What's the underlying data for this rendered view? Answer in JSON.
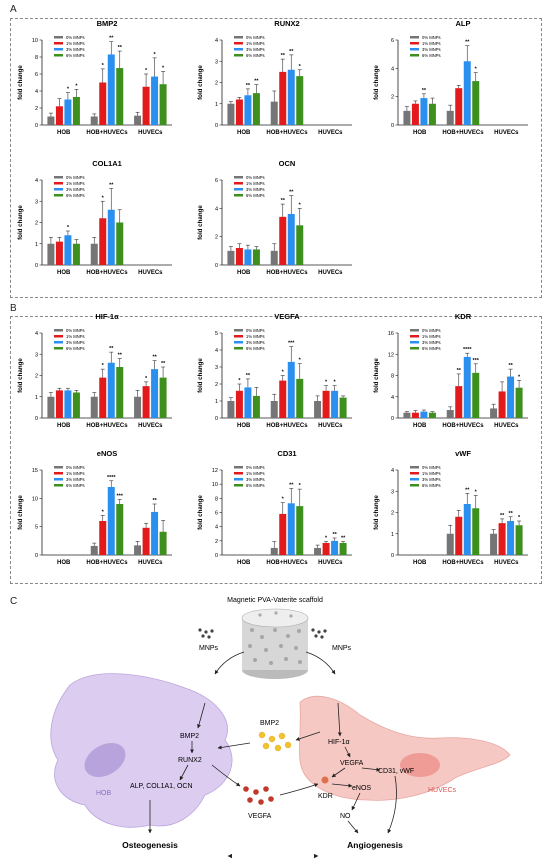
{
  "panels": {
    "a": "A",
    "b": "B",
    "c": "C"
  },
  "axis": {
    "ylabel": "fold change"
  },
  "legend": [
    {
      "label": "0% MNPs",
      "color": "#757575"
    },
    {
      "label": "1% MNPs",
      "color": "#e31a1c"
    },
    {
      "label": "3% MNPs",
      "color": "#2b8ff0"
    },
    {
      "label": "6% MNPs",
      "color": "#3d8f1e"
    }
  ],
  "chart_data": [
    {
      "type": "bar",
      "title": "BMP2",
      "categories": [
        "HOB",
        "HOB+HUVECs",
        "HUVECs"
      ],
      "ylim": [
        0,
        10
      ],
      "yticks": [
        0,
        2,
        4,
        6,
        8,
        10
      ],
      "series": [
        {
          "name": "0% MNPs",
          "values": [
            1.0,
            1.0,
            1.1
          ]
        },
        {
          "name": "1% MNPs",
          "values": [
            2.2,
            5.0,
            4.5
          ]
        },
        {
          "name": "3% MNPs",
          "values": [
            3.0,
            8.3,
            5.7
          ]
        },
        {
          "name": "6% MNPs",
          "values": [
            3.3,
            6.7,
            4.8
          ]
        }
      ],
      "errors": [
        [
          0.4,
          0.3,
          0.4
        ],
        [
          0.9,
          1.6,
          1.5
        ],
        [
          0.8,
          1.5,
          2.2
        ],
        [
          0.9,
          2.0,
          1.5
        ]
      ],
      "stars": [
        [
          "",
          "",
          ""
        ],
        [
          "",
          "*",
          "*"
        ],
        [
          "*",
          "**",
          "*"
        ],
        [
          "*",
          "**",
          "*"
        ]
      ]
    },
    {
      "type": "bar",
      "title": "RUNX2",
      "categories": [
        "HOB",
        "HOB+HUVECs",
        "HUVECs"
      ],
      "ylim": [
        0,
        4
      ],
      "yticks": [
        0,
        1,
        2,
        3,
        4
      ],
      "series": [
        {
          "name": "0% MNPs",
          "values": [
            1.0,
            1.1,
            0
          ]
        },
        {
          "name": "1% MNPs",
          "values": [
            1.2,
            2.5,
            0
          ]
        },
        {
          "name": "3% MNPs",
          "values": [
            1.4,
            2.6,
            0
          ]
        },
        {
          "name": "6% MNPs",
          "values": [
            1.5,
            2.3,
            0
          ]
        }
      ],
      "errors": [
        [
          0.1,
          0.5,
          0
        ],
        [
          0.1,
          0.6,
          0
        ],
        [
          0.3,
          0.7,
          0
        ],
        [
          0.4,
          0.3,
          0
        ]
      ],
      "stars": [
        [
          "",
          "",
          ""
        ],
        [
          "",
          "**",
          ""
        ],
        [
          "**",
          "**",
          ""
        ],
        [
          "**",
          "*",
          ""
        ]
      ]
    },
    {
      "type": "bar",
      "title": "ALP",
      "categories": [
        "HOB",
        "HOB+HUVECs",
        "HUVECs"
      ],
      "ylim": [
        0,
        6
      ],
      "yticks": [
        0,
        2,
        4,
        6
      ],
      "series": [
        {
          "name": "0% MNPs",
          "values": [
            1.0,
            1.0,
            0
          ]
        },
        {
          "name": "1% MNPs",
          "values": [
            1.5,
            2.6,
            0
          ]
        },
        {
          "name": "3% MNPs",
          "values": [
            1.9,
            4.5,
            0
          ]
        },
        {
          "name": "6% MNPs",
          "values": [
            1.5,
            3.1,
            0
          ]
        }
      ],
      "errors": [
        [
          0.3,
          0.4,
          0
        ],
        [
          0.2,
          0.2,
          0
        ],
        [
          0.3,
          1.1,
          0
        ],
        [
          0.4,
          0.6,
          0
        ]
      ],
      "stars": [
        [
          "",
          "",
          ""
        ],
        [
          "",
          "",
          ""
        ],
        [
          "**",
          "**",
          ""
        ],
        [
          "",
          "*",
          ""
        ]
      ]
    },
    {
      "type": "bar",
      "title": "COL1A1",
      "categories": [
        "HOB",
        "HOB+HUVECs",
        "HUVECs"
      ],
      "ylim": [
        0,
        4
      ],
      "yticks": [
        0,
        1,
        2,
        3,
        4
      ],
      "series": [
        {
          "name": "0% MNPs",
          "values": [
            1.0,
            1.0,
            0
          ]
        },
        {
          "name": "1% MNPs",
          "values": [
            1.1,
            2.2,
            0
          ]
        },
        {
          "name": "3% MNPs",
          "values": [
            1.4,
            2.6,
            0
          ]
        },
        {
          "name": "6% MNPs",
          "values": [
            1.0,
            2.0,
            0
          ]
        }
      ],
      "errors": [
        [
          0.3,
          0.3,
          0
        ],
        [
          0.2,
          0.8,
          0
        ],
        [
          0.2,
          1.0,
          0
        ],
        [
          0.2,
          0.6,
          0
        ]
      ],
      "stars": [
        [
          "",
          "",
          ""
        ],
        [
          "",
          "*",
          ""
        ],
        [
          "*",
          "**",
          ""
        ],
        [
          "",
          "",
          ""
        ]
      ]
    },
    {
      "type": "bar",
      "title": "OCN",
      "categories": [
        "HOB",
        "HOB+HUVECs",
        "HUVECs"
      ],
      "ylim": [
        0,
        6
      ],
      "yticks": [
        0,
        2,
        4,
        6
      ],
      "series": [
        {
          "name": "0% MNPs",
          "values": [
            1.0,
            1.0,
            0
          ]
        },
        {
          "name": "1% MNPs",
          "values": [
            1.2,
            3.4,
            0
          ]
        },
        {
          "name": "3% MNPs",
          "values": [
            1.1,
            3.6,
            0
          ]
        },
        {
          "name": "6% MNPs",
          "values": [
            1.1,
            2.8,
            0
          ]
        }
      ],
      "errors": [
        [
          0.3,
          0.5,
          0
        ],
        [
          0.3,
          0.9,
          0
        ],
        [
          0.3,
          1.3,
          0
        ],
        [
          0.2,
          1.2,
          0
        ]
      ],
      "stars": [
        [
          "",
          "",
          ""
        ],
        [
          "",
          "**",
          ""
        ],
        [
          "",
          "**",
          ""
        ],
        [
          "",
          "*",
          ""
        ]
      ]
    },
    {
      "type": "bar",
      "title": "HIF-1α",
      "categories": [
        "HOB",
        "HOB+HUVECs",
        "HUVECs"
      ],
      "ylim": [
        0,
        4
      ],
      "yticks": [
        0,
        1,
        2,
        3,
        4
      ],
      "series": [
        {
          "name": "0% MNPs",
          "values": [
            1.0,
            1.0,
            1.0
          ]
        },
        {
          "name": "1% MNPs",
          "values": [
            1.3,
            1.9,
            1.5
          ]
        },
        {
          "name": "3% MNPs",
          "values": [
            1.3,
            2.6,
            2.3
          ]
        },
        {
          "name": "6% MNPs",
          "values": [
            1.2,
            2.4,
            1.9
          ]
        }
      ],
      "errors": [
        [
          0.2,
          0.2,
          0.3
        ],
        [
          0.1,
          0.4,
          0.2
        ],
        [
          0.1,
          0.5,
          0.4
        ],
        [
          0.1,
          0.4,
          0.5
        ]
      ],
      "stars": [
        [
          "",
          "",
          ""
        ],
        [
          "",
          "*",
          "*"
        ],
        [
          "",
          "**",
          "**"
        ],
        [
          "",
          "**",
          "**"
        ]
      ]
    },
    {
      "type": "bar",
      "title": "VEGFA",
      "categories": [
        "HOB",
        "HOB+HUVECs",
        "HUVECs"
      ],
      "ylim": [
        0,
        5
      ],
      "yticks": [
        0,
        1,
        2,
        3,
        4,
        5
      ],
      "series": [
        {
          "name": "0% MNPs",
          "values": [
            1.0,
            1.0,
            1.0
          ]
        },
        {
          "name": "1% MNPs",
          "values": [
            1.6,
            2.2,
            1.6
          ]
        },
        {
          "name": "3% MNPs",
          "values": [
            1.8,
            3.3,
            1.6
          ]
        },
        {
          "name": "6% MNPs",
          "values": [
            1.3,
            2.3,
            1.2
          ]
        }
      ],
      "errors": [
        [
          0.2,
          0.4,
          0.3
        ],
        [
          0.4,
          0.3,
          0.3
        ],
        [
          0.5,
          0.9,
          0.3
        ],
        [
          0.5,
          0.9,
          0.1
        ]
      ],
      "stars": [
        [
          "",
          "",
          ""
        ],
        [
          "*",
          "*",
          "*"
        ],
        [
          "**",
          "***",
          "*"
        ],
        [
          "",
          "*",
          ""
        ]
      ]
    },
    {
      "type": "bar",
      "title": "KDR",
      "categories": [
        "HOB",
        "HOB+HUVECs",
        "HUVECs"
      ],
      "ylim": [
        0,
        16
      ],
      "yticks": [
        0,
        4,
        8,
        12,
        16
      ],
      "series": [
        {
          "name": "0% MNPs",
          "values": [
            1.0,
            1.5,
            1.8
          ]
        },
        {
          "name": "1% MNPs",
          "values": [
            1.0,
            6.0,
            5.0
          ]
        },
        {
          "name": "3% MNPs",
          "values": [
            1.2,
            11.5,
            7.8
          ]
        },
        {
          "name": "6% MNPs",
          "values": [
            1.0,
            8.5,
            5.7
          ]
        }
      ],
      "errors": [
        [
          0.2,
          0.6,
          0.8
        ],
        [
          0.4,
          2.3,
          1.8
        ],
        [
          0.3,
          0.7,
          1.4
        ],
        [
          0.2,
          1.7,
          1.4
        ]
      ],
      "stars": [
        [
          "",
          "",
          ""
        ],
        [
          "",
          "**",
          ""
        ],
        [
          "",
          "****",
          "**"
        ],
        [
          "",
          "***",
          "*"
        ]
      ]
    },
    {
      "type": "bar",
      "title": "eNOS",
      "categories": [
        "HOB",
        "HOB+HUVECs",
        "HUVECs"
      ],
      "ylim": [
        0,
        15
      ],
      "yticks": [
        0,
        5,
        10,
        15
      ],
      "series": [
        {
          "name": "0% MNPs",
          "values": [
            0,
            1.6,
            1.7
          ]
        },
        {
          "name": "1% MNPs",
          "values": [
            0,
            6.0,
            4.8
          ]
        },
        {
          "name": "3% MNPs",
          "values": [
            0,
            12.0,
            7.6
          ]
        },
        {
          "name": "6% MNPs",
          "values": [
            0,
            9.0,
            4.1
          ]
        }
      ],
      "errors": [
        [
          0,
          0.5,
          0.7
        ],
        [
          0,
          1.0,
          0.8
        ],
        [
          0,
          1.1,
          1.4
        ],
        [
          0,
          0.8,
          2.0
        ]
      ],
      "stars": [
        [
          "",
          "",
          ""
        ],
        [
          "",
          "*",
          ""
        ],
        [
          "",
          "****",
          "**"
        ],
        [
          "",
          "***",
          ""
        ]
      ]
    },
    {
      "type": "bar",
      "title": "CD31",
      "categories": [
        "HOB",
        "HOB+HUVECs",
        "HUVECs"
      ],
      "ylim": [
        0,
        12
      ],
      "yticks": [
        0,
        2,
        4,
        6,
        8,
        10,
        12
      ],
      "series": [
        {
          "name": "0% MNPs",
          "values": [
            0,
            1.0,
            1.0
          ]
        },
        {
          "name": "1% MNPs",
          "values": [
            0,
            5.8,
            1.7
          ]
        },
        {
          "name": "3% MNPs",
          "values": [
            0,
            7.3,
            2.0
          ]
        },
        {
          "name": "6% MNPs",
          "values": [
            0,
            6.9,
            1.7
          ]
        }
      ],
      "errors": [
        [
          0,
          0.9,
          0.4
        ],
        [
          0,
          1.6,
          0.2
        ],
        [
          0,
          2.1,
          0.4
        ],
        [
          0,
          2.4,
          0.2
        ]
      ],
      "stars": [
        [
          "",
          "",
          ""
        ],
        [
          "",
          "*",
          "*"
        ],
        [
          "",
          "**",
          "**"
        ],
        [
          "",
          "*",
          "**"
        ]
      ]
    },
    {
      "type": "bar",
      "title": "vWF",
      "categories": [
        "HOB",
        "HOB+HUVECs",
        "HUVECs"
      ],
      "ylim": [
        0,
        4
      ],
      "yticks": [
        0,
        1,
        2,
        3,
        4
      ],
      "series": [
        {
          "name": "0% MNPs",
          "values": [
            0,
            1.0,
            1.0
          ]
        },
        {
          "name": "1% MNPs",
          "values": [
            0,
            1.8,
            1.5
          ]
        },
        {
          "name": "3% MNPs",
          "values": [
            0,
            2.4,
            1.6
          ]
        },
        {
          "name": "6% MNPs",
          "values": [
            0,
            2.2,
            1.4
          ]
        }
      ],
      "errors": [
        [
          0,
          0.4,
          0.2
        ],
        [
          0,
          0.3,
          0.2
        ],
        [
          0,
          0.5,
          0.2
        ],
        [
          0,
          0.6,
          0.2
        ]
      ],
      "stars": [
        [
          "",
          "",
          ""
        ],
        [
          "",
          "",
          "**"
        ],
        [
          "",
          "**",
          "**"
        ],
        [
          "",
          "*",
          "*"
        ]
      ]
    }
  ],
  "schematic": {
    "scaffold_title": "Magnetic PVA-Vaterite scaffold",
    "mnps_left": "MNPs",
    "mnps_right": "MNPs",
    "hob_bmp2": "BMP2",
    "hob_runx2": "RUNX2",
    "hob_genes": "ALP, COL1A1, OCN",
    "hob_cell": "HOB",
    "shared_bmp2": "BMP2",
    "shared_vegfa": "VEGFA",
    "huvec_hif": "HIF-1α",
    "huvec_vegfa": "VEGFA",
    "huvec_kdr": "KDR",
    "huvec_enos": "eNOS",
    "huvec_cd31": "CD31, vWF",
    "huvec_no": "NO",
    "huvec_cell": "HUVECs",
    "osteogenesis": "Osteogenesis",
    "angiogenesis": "Angiogenesis",
    "colors": {
      "hob_cell": "#dccdf0",
      "huvec_cell": "#f5c8c4",
      "gold": "#f2c230",
      "red_particle": "#c0392b"
    }
  }
}
